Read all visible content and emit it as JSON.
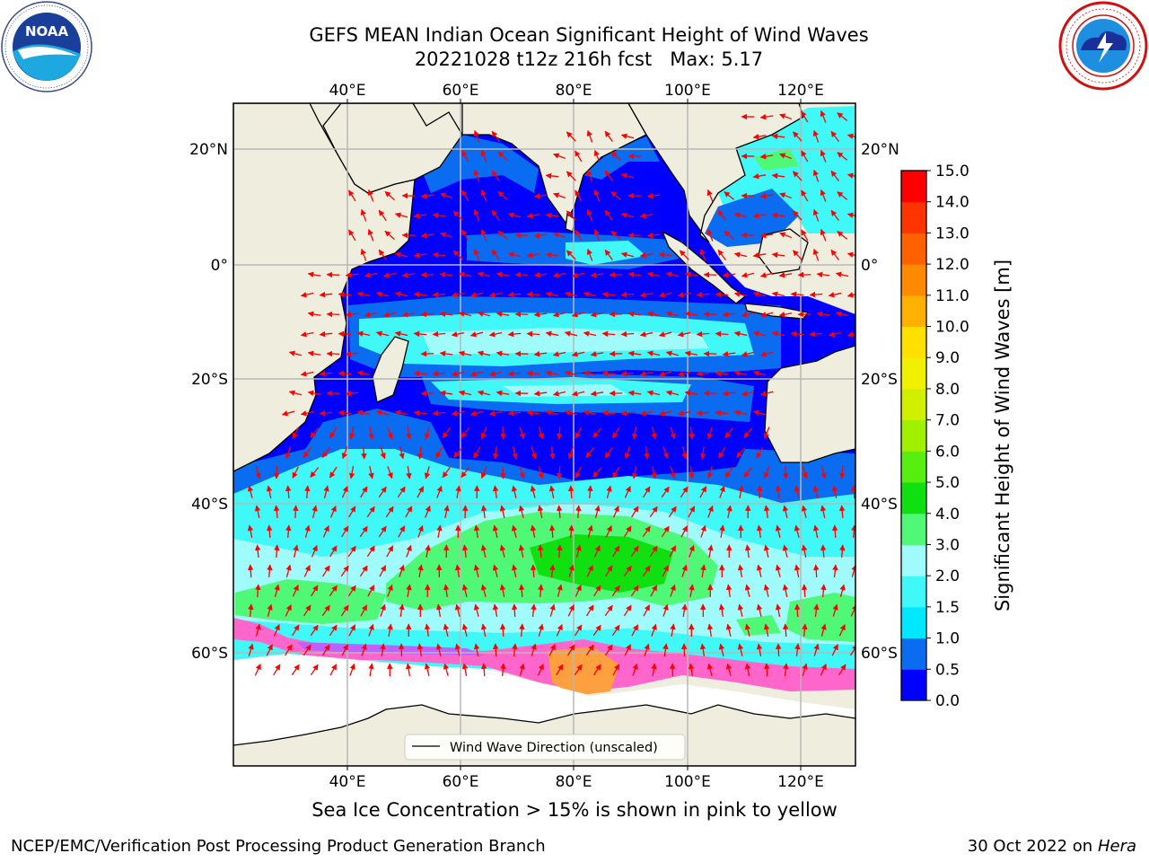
{
  "header": {
    "title_line1": "GEFS MEAN Indian Ocean Significant Height of Wind Waves",
    "title_line2": "20221028 t12z 216h fcst   Max: 5.17"
  },
  "logos": {
    "left": "NOAA",
    "right": "NATIONAL WEATHER SERVICE"
  },
  "map": {
    "lon_labels": [
      "40°E",
      "60°E",
      "80°E",
      "100°E",
      "120°E"
    ],
    "lat_labels": [
      "20°N",
      "0°",
      "20°S",
      "40°S",
      "60°S"
    ],
    "legend": "Wind Wave Direction (unscaled)"
  },
  "colorbar": {
    "label": "Significant Height of Wind Waves [m]",
    "ticks": [
      "0.0",
      "0.5",
      "1.0",
      "1.5",
      "2.0",
      "3.0",
      "4.0",
      "5.0",
      "6.0",
      "7.0",
      "8.0",
      "9.0",
      "10.0",
      "11.0",
      "12.0",
      "13.0",
      "14.0",
      "15.0"
    ],
    "colors": [
      "#0000ff",
      "#0a6cf0",
      "#00e8ff",
      "#40f8f8",
      "#a0fcfc",
      "#50f878",
      "#10e010",
      "#58ee10",
      "#a0f000",
      "#d0f000",
      "#f0f000",
      "#ffe000",
      "#ffb000",
      "#ff8a00",
      "#ff6000",
      "#ff3400",
      "#ff0000"
    ]
  },
  "caption": "Sea Ice Concentration > 15% is shown in pink to yellow",
  "footer": {
    "left": "NCEP/EMC/Verification Post Processing Product Generation Branch",
    "right_date": "30 Oct 2022 on ",
    "right_host": "Hera"
  }
}
